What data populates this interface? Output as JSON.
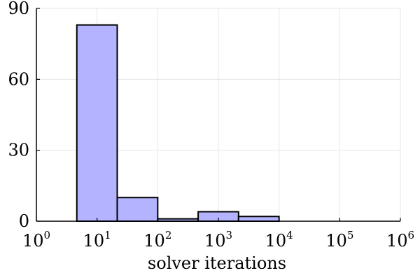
{
  "chart_data": {
    "type": "bar",
    "subtype": "histogram",
    "x_scale": "log10",
    "xlabel": "solver iterations",
    "ylabel": "",
    "xlim": [
      1,
      1000000
    ],
    "ylim": [
      0,
      90
    ],
    "x_ticks": [
      {
        "base": "10",
        "exp": "0",
        "value": 1
      },
      {
        "base": "10",
        "exp": "1",
        "value": 10
      },
      {
        "base": "10",
        "exp": "2",
        "value": 100
      },
      {
        "base": "10",
        "exp": "3",
        "value": 1000
      },
      {
        "base": "10",
        "exp": "4",
        "value": 10000
      },
      {
        "base": "10",
        "exp": "5",
        "value": 100000
      },
      {
        "base": "10",
        "exp": "6",
        "value": 1000000
      }
    ],
    "y_ticks": [
      "0",
      "30",
      "60",
      "90"
    ],
    "bins": [
      {
        "x_start": 4.64,
        "x_end": 21.5,
        "count": 83
      },
      {
        "x_start": 21.5,
        "x_end": 100,
        "count": 10
      },
      {
        "x_start": 100,
        "x_end": 464,
        "count": 1
      },
      {
        "x_start": 464,
        "x_end": 2150,
        "count": 4
      },
      {
        "x_start": 2150,
        "x_end": 10000,
        "count": 2
      },
      {
        "x_start": 10000,
        "x_end": 46400,
        "count": 0
      },
      {
        "x_start": 46400,
        "x_end": 215000,
        "count": 0
      },
      {
        "x_start": 215000,
        "x_end": 1000000,
        "count": 0
      }
    ],
    "bar_color": "#b3b3ff",
    "edge_color": "#000000",
    "grid": true,
    "legend": "none"
  }
}
